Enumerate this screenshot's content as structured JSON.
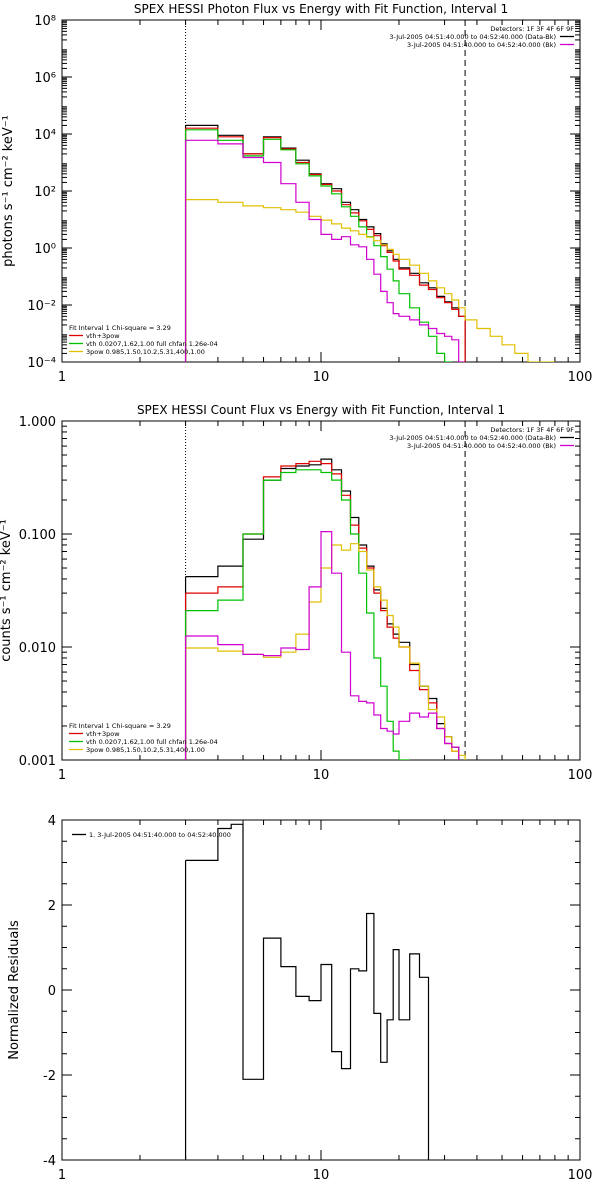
{
  "chart_data": [
    {
      "type": "line",
      "title": "SPEX HESSI Photon Flux vs Energy with Fit Function, Interval 1",
      "xlabel": "",
      "ylabel": "photons s⁻¹ cm⁻² keV⁻¹",
      "xscale": "log",
      "yscale": "log",
      "xlim": [
        1,
        100
      ],
      "ylim": [
        0.0001,
        100000000
      ],
      "x_ticks": [
        1,
        10,
        100
      ],
      "x_tick_labels": [
        "1",
        "10",
        "100"
      ],
      "y_ticks": [
        0.0001,
        0.01,
        1,
        100,
        10000,
        1000000,
        100000000
      ],
      "y_tick_labels": [
        "10⁻⁴",
        "10⁻²",
        "10⁰",
        "10²",
        "10⁴",
        "10⁶",
        "10⁸"
      ],
      "vlines": [
        {
          "x": 3.0,
          "style": "dotted",
          "color": "#000000"
        },
        {
          "x": 36.0,
          "style": "dashed",
          "color": "#000000"
        }
      ],
      "legend_top": {
        "position": "top-right",
        "lines": [
          {
            "text": "Detectors: 1F 3F 4F 6F 9F",
            "color": "#000000",
            "swatch": false
          },
          {
            "text": "3-Jul-2005 04:51:40.000 to 04:52:40.000 (Data-Bk)",
            "color": "#000000",
            "swatch": true
          },
          {
            "text": "3-Jul-2005 04:51:40.000 to 04:52:40.000 (Bk)",
            "color": "#d000d0",
            "swatch": true
          }
        ]
      },
      "legend_bottom": {
        "position": "bottom-left",
        "lines": [
          {
            "text": "Fit Interval 1   Chi-square = 3.29",
            "color": "#000000",
            "swatch": false
          },
          {
            "text": "vth+3pow",
            "color": "#e00000",
            "swatch": true
          },
          {
            "text": "vth 0.0207,1.62,1.00  full chfan 1.26e-04",
            "color": "#00c000",
            "swatch": true
          },
          {
            "text": "3pow 0.985,1.50,10.2,5.31,400,1.00",
            "color": "#e0c000",
            "swatch": true
          }
        ]
      },
      "edges": [
        3,
        4,
        5,
        6,
        7,
        8,
        9,
        10,
        11,
        12,
        13,
        14,
        15,
        16,
        17,
        18,
        19,
        20,
        22,
        24,
        26,
        28,
        30,
        32,
        34,
        36,
        40,
        45,
        50,
        56,
        63,
        71,
        80
      ],
      "series": [
        {
          "name": "3-Jul-2005 04:51:40.000 to 04:52:40.000 (Data-Bk)",
          "color": "#000000",
          "values": [
            20000,
            9000,
            2000,
            8000,
            3200,
            1200,
            400,
            180,
            120,
            40,
            22,
            10,
            5.5,
            3.2,
            1.4,
            0.8,
            0.4,
            0.2,
            0.13,
            0.06,
            0.04,
            0.02,
            0.013,
            0.008,
            0.004
          ]
        },
        {
          "name": "vth+3pow",
          "color": "#e00000",
          "values": [
            16000,
            8000,
            2000,
            7500,
            3000,
            1000,
            380,
            170,
            100,
            33,
            17,
            9,
            4.5,
            2.7,
            1.2,
            0.7,
            0.35,
            0.18,
            0.11,
            0.05,
            0.035,
            0.018,
            0.012,
            0.007,
            0.004
          ]
        },
        {
          "name": "vth 0.0207,1.62,1.00  full chfan 1.26e-04",
          "color": "#00c000",
          "values": [
            14000,
            6000,
            1700,
            6500,
            2800,
            900,
            340,
            150,
            80,
            28,
            13,
            5.5,
            2.5,
            1.2,
            0.5,
            0.18,
            0.07,
            0.025,
            0.008,
            0.0025,
            0.0008,
            0.0002,
            4e-05
          ]
        },
        {
          "name": "3pow 0.985,1.50,10.2,5.31,400,1.00",
          "color": "#e0c000",
          "values": [
            50,
            40,
            30,
            26,
            22,
            18,
            13,
            9.5,
            7,
            5,
            4,
            3,
            2.4,
            1.8,
            1.3,
            0.9,
            0.6,
            0.4,
            0.25,
            0.13,
            0.07,
            0.04,
            0.025,
            0.015,
            0.008,
            0.003,
            0.0015,
            0.0008,
            0.0004,
            0.0002,
            0.0001,
            5e-05
          ]
        },
        {
          "name": "3-Jul-2005 04:51:40.000 to 04:52:40.000 (Bk)",
          "color": "#d000d0",
          "values": [
            6000,
            4500,
            1500,
            1000,
            180,
            40,
            10,
            3,
            2,
            2.5,
            1.3,
            1.1,
            0.4,
            0.12,
            0.03,
            0.012,
            0.005,
            0.004,
            0.003,
            0.002,
            0.0015,
            0.001,
            0.0008,
            0.0006,
            4e-05
          ]
        }
      ]
    },
    {
      "type": "line",
      "title": "SPEX HESSI Count Flux vs Energy with Fit Function, Interval 1",
      "xlabel": "",
      "ylabel": "counts s⁻¹ cm⁻² keV⁻¹",
      "xscale": "log",
      "yscale": "log",
      "xlim": [
        1,
        100
      ],
      "ylim": [
        0.001,
        1
      ],
      "x_ticks": [
        1,
        10,
        100
      ],
      "x_tick_labels": [
        "1",
        "10",
        "100"
      ],
      "y_ticks": [
        0.001,
        0.01,
        0.1,
        1
      ],
      "y_tick_labels": [
        "0.001",
        "0.010",
        "0.100",
        "1.000"
      ],
      "vlines": [
        {
          "x": 3.0,
          "style": "dotted",
          "color": "#000000"
        },
        {
          "x": 36.0,
          "style": "dashed",
          "color": "#000000"
        }
      ],
      "legend_top": {
        "position": "top-right",
        "lines": [
          {
            "text": "Detectors: 1F 3F 4F 6F 9F",
            "color": "#000000",
            "swatch": false
          },
          {
            "text": "3-Jul-2005 04:51:40.000 to 04:52:40.000 (Data-Bk)",
            "color": "#000000",
            "swatch": true
          },
          {
            "text": "3-Jul-2005 04:51:40.000 to 04:52:40.000 (Bk)",
            "color": "#d000d0",
            "swatch": true
          }
        ]
      },
      "legend_bottom": {
        "position": "bottom-left",
        "lines": [
          {
            "text": "Fit Interval 1   Chi-square = 3.29",
            "color": "#000000",
            "swatch": false
          },
          {
            "text": "vth+3pow",
            "color": "#e00000",
            "swatch": true
          },
          {
            "text": "vth 0.0207,1.62,1.00  full chfan 1.26e-04",
            "color": "#00c000",
            "swatch": true
          },
          {
            "text": "3pow 0.985,1.50,10.2,5.31,400,1.00",
            "color": "#e0c000",
            "swatch": true
          }
        ]
      },
      "edges": [
        3,
        4,
        5,
        6,
        7,
        8,
        9,
        10,
        11,
        12,
        13,
        14,
        15,
        16,
        17,
        18,
        19,
        20,
        22,
        24,
        26,
        28,
        30,
        32,
        34,
        36
      ],
      "series": [
        {
          "name": "3-Jul-2005 04:51:40.000 to 04:52:40.000 (Data-Bk)",
          "color": "#000000",
          "values": [
            0.042,
            0.052,
            0.09,
            0.3,
            0.38,
            0.4,
            0.41,
            0.46,
            0.37,
            0.24,
            0.14,
            0.08,
            0.052,
            0.032,
            0.022,
            0.016,
            0.013,
            0.011,
            0.007,
            0.0045,
            0.0035,
            0.0021,
            0.0016,
            0.0013
          ]
        },
        {
          "name": "vth+3pow",
          "color": "#e00000",
          "values": [
            0.03,
            0.034,
            0.1,
            0.32,
            0.4,
            0.42,
            0.44,
            0.42,
            0.34,
            0.22,
            0.12,
            0.075,
            0.05,
            0.03,
            0.021,
            0.015,
            0.012,
            0.01,
            0.0062,
            0.0042,
            0.0032,
            0.0019,
            0.0014,
            0.0012
          ]
        },
        {
          "name": "vth 0.0207,1.62,1.00  full chfan 1.26e-04",
          "color": "#00c000",
          "values": [
            0.021,
            0.026,
            0.1,
            0.3,
            0.35,
            0.37,
            0.37,
            0.35,
            0.3,
            0.2,
            0.1,
            0.045,
            0.02,
            0.008,
            0.0045,
            0.0022,
            0.0012,
            0.0009
          ]
        },
        {
          "name": "3pow 0.985,1.50,10.2,5.31,400,1.00",
          "color": "#e0c000",
          "values": [
            0.0098,
            0.0092,
            0.0086,
            0.0081,
            0.009,
            0.013,
            0.025,
            0.05,
            0.08,
            0.072,
            0.082,
            0.07,
            0.048,
            0.034,
            0.026,
            0.019,
            0.015,
            0.01,
            0.0072,
            0.0045,
            0.0028,
            0.0024,
            0.0016,
            0.0012,
            0.0011
          ]
        },
        {
          "name": "3-Jul-2005 04:51:40.000 to 04:52:40.000 (Bk)",
          "color": "#d000d0",
          "values": [
            0.0125,
            0.0105,
            0.0086,
            0.0084,
            0.0098,
            0.0095,
            0.034,
            0.105,
            0.045,
            0.009,
            0.0037,
            0.0033,
            0.0032,
            0.0025,
            0.0019,
            0.0018,
            0.0017,
            0.0022,
            0.0026,
            0.0024,
            0.0026,
            0.0019,
            0.0014,
            0.0013
          ]
        }
      ]
    },
    {
      "type": "line",
      "title": "",
      "xlabel": "",
      "ylabel": "Normalized Residuals",
      "xscale": "log",
      "yscale": "linear",
      "xlim": [
        1,
        100
      ],
      "ylim": [
        -4,
        4
      ],
      "x_ticks": [
        1,
        10,
        100
      ],
      "x_tick_labels": [
        "1",
        "10",
        "100"
      ],
      "y_ticks": [
        -4,
        -2,
        0,
        2,
        4
      ],
      "y_tick_labels": [
        "-4",
        "-2",
        "0",
        "2",
        "4"
      ],
      "vlines": [],
      "legend_top": {
        "position": "top-left",
        "lines": [
          {
            "text": "1.  3-Jul-2005 04:51:40.000 to 04:52:40.000",
            "color": "#000000",
            "swatch": true
          }
        ]
      },
      "legend_bottom": null,
      "edges": [
        3,
        4,
        4.5,
        5,
        6,
        7,
        8,
        9,
        10,
        11,
        12,
        13,
        14,
        15,
        16,
        17,
        18,
        19,
        20,
        22,
        24,
        26,
        28,
        30,
        32,
        34,
        36
      ],
      "series": [
        {
          "name": "1.  3-Jul-2005 04:51:40.000 to 04:52:40.000",
          "color": "#000000",
          "values": [
            3.05,
            3.8,
            3.9,
            -2.1,
            1.22,
            0.55,
            -0.15,
            -0.25,
            0.6,
            -1.45,
            -1.85,
            0.5,
            0.45,
            1.8,
            -0.55,
            -1.7,
            -0.7,
            0.95,
            -0.7,
            0.85,
            0.3
          ]
        }
      ]
    }
  ]
}
